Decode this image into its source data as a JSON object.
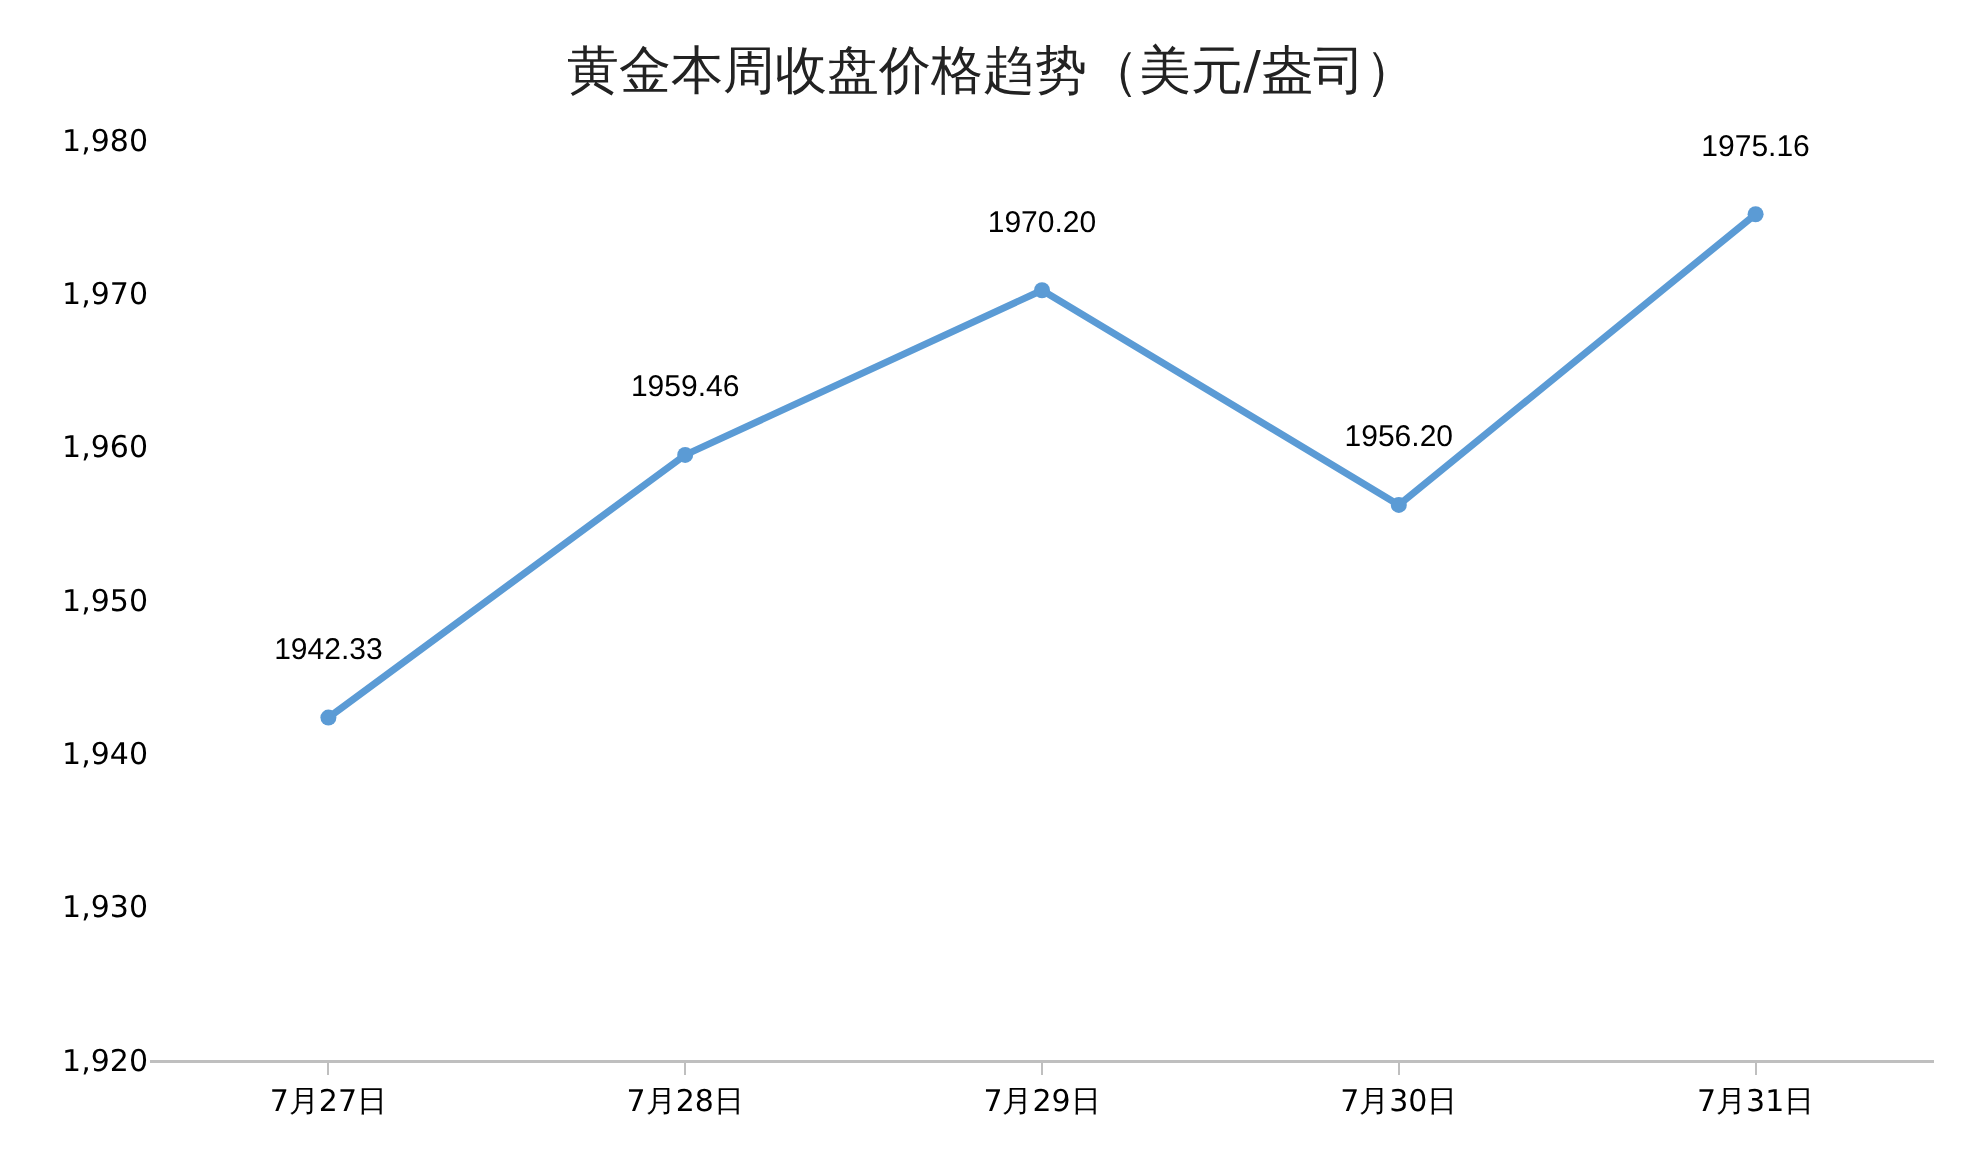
{
  "chart_data": {
    "type": "line",
    "title": "黄金本周收盘价格趋势（美元/盎司）",
    "categories": [
      "7月27日",
      "7月28日",
      "7月29日",
      "7月30日",
      "7月31日"
    ],
    "series": [
      {
        "color": "#5b9bd5",
        "values": [
          1942.33,
          1959.46,
          1970.2,
          1956.2,
          1975.16
        ],
        "value_labels": [
          "1942.33",
          "1959.46",
          "1970.20",
          "1956.20",
          "1975.16"
        ]
      }
    ],
    "ylim": [
      1920,
      1980
    ],
    "yticks": [
      {
        "value": 1920,
        "label": "1,920"
      },
      {
        "value": 1930,
        "label": "1,930"
      },
      {
        "value": 1940,
        "label": "1,940"
      },
      {
        "value": 1950,
        "label": "1,950"
      },
      {
        "value": 1960,
        "label": "1,960"
      },
      {
        "value": 1970,
        "label": "1,970"
      },
      {
        "value": 1980,
        "label": "1,980"
      }
    ],
    "grid": false,
    "marker": "circle",
    "line_style": "solid"
  }
}
